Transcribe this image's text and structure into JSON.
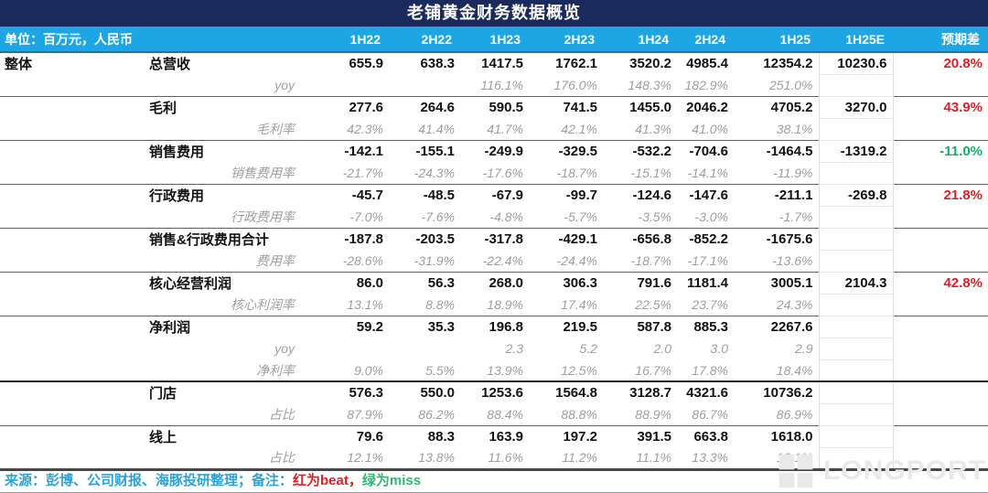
{
  "chart_data": {
    "type": "table",
    "title": "老铺黄金财务数据概览",
    "unit_label": "单位：百万元，人民币",
    "section_label": "整体",
    "columns": [
      "1H22",
      "2H22",
      "1H23",
      "2H23",
      "1H24",
      "2H24",
      "1H25",
      "1H25E",
      "预期差"
    ],
    "rows": [
      {
        "section": "整体",
        "label": "总营收",
        "style": "main",
        "sep": "none",
        "diff": "beat",
        "values": [
          "655.9",
          "638.3",
          "1417.5",
          "1762.1",
          "3520.2",
          "4985.4",
          "12354.2",
          "10230.6",
          "20.8%"
        ]
      },
      {
        "label": "yoy",
        "style": "sub",
        "sep": "none",
        "values": [
          "",
          "",
          "116.1%",
          "176.0%",
          "148.3%",
          "182.9%",
          "251.0%",
          "",
          ""
        ]
      },
      {
        "label": "毛利",
        "style": "main",
        "sep": "thin",
        "diff": "beat",
        "values": [
          "277.6",
          "264.6",
          "590.5",
          "741.5",
          "1455.0",
          "2046.2",
          "4705.2",
          "3270.0",
          "43.9%"
        ]
      },
      {
        "label": "毛利率",
        "style": "sub",
        "sep": "none",
        "values": [
          "42.3%",
          "41.4%",
          "41.7%",
          "42.1%",
          "41.3%",
          "41.0%",
          "38.1%",
          "",
          ""
        ]
      },
      {
        "label": "销售费用",
        "style": "main",
        "sep": "thin",
        "diff": "miss",
        "values": [
          "-142.1",
          "-155.1",
          "-249.9",
          "-329.5",
          "-532.2",
          "-704.6",
          "-1464.5",
          "-1319.2",
          "-11.0%"
        ]
      },
      {
        "label": "销售费用率",
        "style": "sub",
        "sep": "none",
        "values": [
          "-21.7%",
          "-24.3%",
          "-17.6%",
          "-18.7%",
          "-15.1%",
          "-14.1%",
          "-11.9%",
          "",
          ""
        ]
      },
      {
        "label": "行政费用",
        "style": "main",
        "sep": "thin",
        "diff": "beat",
        "values": [
          "-45.7",
          "-48.5",
          "-67.9",
          "-99.7",
          "-124.6",
          "-147.6",
          "-211.1",
          "-269.8",
          "21.8%"
        ]
      },
      {
        "label": "行政费用率",
        "style": "sub",
        "sep": "none",
        "values": [
          "-7.0%",
          "-7.6%",
          "-4.8%",
          "-5.7%",
          "-3.5%",
          "-3.0%",
          "-1.7%",
          "",
          ""
        ]
      },
      {
        "label": "销售&行政费用合计",
        "style": "main",
        "sep": "thin",
        "values": [
          "-187.8",
          "-203.5",
          "-317.8",
          "-429.1",
          "-656.8",
          "-852.2",
          "-1675.6",
          "",
          ""
        ]
      },
      {
        "label": "费用率",
        "style": "sub",
        "sep": "none",
        "values": [
          "-28.6%",
          "-31.9%",
          "-22.4%",
          "-24.4%",
          "-18.7%",
          "-17.1%",
          "-13.6%",
          "",
          ""
        ]
      },
      {
        "label": "核心经营利润",
        "style": "main",
        "sep": "thin",
        "diff": "beat",
        "values": [
          "86.0",
          "56.3",
          "268.0",
          "306.3",
          "791.6",
          "1181.4",
          "3005.1",
          "2104.3",
          "42.8%"
        ]
      },
      {
        "label": "核心利润率",
        "style": "sub",
        "sep": "none",
        "values": [
          "13.1%",
          "8.8%",
          "18.9%",
          "17.4%",
          "22.5%",
          "23.7%",
          "24.3%",
          "",
          ""
        ]
      },
      {
        "label": "净利润",
        "style": "main",
        "sep": "thin",
        "values": [
          "59.2",
          "35.3",
          "196.8",
          "219.5",
          "587.8",
          "885.3",
          "2267.6",
          "",
          ""
        ]
      },
      {
        "label": "yoy",
        "style": "sub",
        "sep": "none",
        "values": [
          "",
          "",
          "2.3",
          "5.2",
          "2.0",
          "3.0",
          "2.9",
          "",
          ""
        ]
      },
      {
        "label": "净利率",
        "style": "sub",
        "sep": "none",
        "values": [
          "9.0%",
          "5.5%",
          "13.9%",
          "12.5%",
          "16.7%",
          "17.8%",
          "18.4%",
          "",
          ""
        ]
      },
      {
        "label": "门店",
        "style": "main",
        "sep": "thick",
        "values": [
          "576.3",
          "550.0",
          "1253.6",
          "1564.8",
          "3128.7",
          "4321.6",
          "10736.2",
          "",
          ""
        ]
      },
      {
        "label": "占比",
        "style": "sub",
        "sep": "none",
        "values": [
          "87.9%",
          "86.2%",
          "88.4%",
          "88.8%",
          "88.9%",
          "86.7%",
          "86.9%",
          "",
          ""
        ]
      },
      {
        "label": "线上",
        "style": "main",
        "sep": "thin",
        "values": [
          "79.6",
          "88.3",
          "163.9",
          "197.2",
          "391.5",
          "663.8",
          "1618.0",
          "",
          ""
        ]
      },
      {
        "label": "占比",
        "style": "sub",
        "sep": "none",
        "values": [
          "12.1%",
          "13.8%",
          "11.6%",
          "11.2%",
          "11.1%",
          "13.3%",
          "13.1%",
          "",
          ""
        ]
      }
    ]
  },
  "footer": {
    "source": "来源：彭博、公司财报、海豚投研整理；备注：",
    "beat_note": "红为beat，",
    "miss_note": "绿为miss"
  },
  "watermark": "LONGPORT",
  "colors": {
    "title_bg": "#1a2a5c",
    "header_bg": "#1ea5e4",
    "beat_red": "#e01e25",
    "miss_green": "#0cb169",
    "sub_text_gray": "#9e9e9e",
    "footer_blue": "#29a3dc"
  }
}
